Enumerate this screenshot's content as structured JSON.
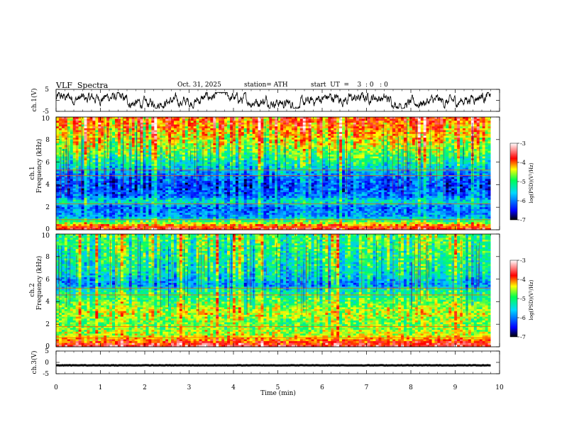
{
  "header": {
    "title": "VLF  Spectra",
    "date": "Oct. 31, 2025",
    "station": "station= ATH",
    "start_ut": "start  UT  =    3  : 0   : 0"
  },
  "colors": {
    "axis": "#000000",
    "waveform": "#000000",
    "colormap": [
      "#000000",
      "#0000ff",
      "#00c8ff",
      "#00ff64",
      "#ffff00",
      "#ff0000",
      "#ffffff"
    ]
  },
  "chart_data": [
    {
      "id": "ch1-waveform",
      "type": "line",
      "ylabel": "ch.1(V)",
      "ylim": [
        -5,
        5
      ],
      "yticks": [
        "5",
        "-5"
      ],
      "xlim": [
        0,
        10
      ],
      "description_values": "noisy trace between about -3.5 and 3.5 V"
    },
    {
      "id": "ch1-spectrogram",
      "type": "heatmap",
      "ylabel_top": "ch.1",
      "ylabel": "Frequency  (kHz)",
      "ylim": [
        0,
        10
      ],
      "yticks": [
        "0",
        "2",
        "4",
        "6",
        "8",
        "10"
      ],
      "xlim": [
        0,
        9.8
      ],
      "colorbar_label": "log(PSD)(V²/Hz)",
      "colorbar_range": [
        -7,
        -3
      ],
      "colorbar_ticks": [
        "-3",
        "-4",
        "-5",
        "-6",
        "-7"
      ],
      "profile": [
        {
          "f": 0,
          "v": -3.6
        },
        {
          "f": 0.4,
          "v": -4.2
        },
        {
          "f": 0.8,
          "v": -5.2
        },
        {
          "f": 1.2,
          "v": -5.9
        },
        {
          "f": 2,
          "v": -6.1
        },
        {
          "f": 2.5,
          "v": -5.4
        },
        {
          "f": 3,
          "v": -6.1
        },
        {
          "f": 4,
          "v": -6.3
        },
        {
          "f": 5,
          "v": -5.9
        },
        {
          "f": 5.5,
          "v": -5.6
        },
        {
          "f": 6.5,
          "v": -5.1
        },
        {
          "f": 7.5,
          "v": -4.7
        },
        {
          "f": 8.5,
          "v": -4.4
        },
        {
          "f": 9.3,
          "v": -4.2
        },
        {
          "f": 10,
          "v": -4.0
        }
      ],
      "lines_khz": [
        0.3,
        0.9,
        2.3,
        4.8,
        5.3
      ]
    },
    {
      "id": "ch2-spectrogram",
      "type": "heatmap",
      "ylabel_top": "ch.2",
      "ylabel": "Frequency  (kHz)",
      "ylim": [
        0,
        10
      ],
      "yticks": [
        "0",
        "2",
        "4",
        "6",
        "8",
        "10"
      ],
      "xlim": [
        0,
        9.8
      ],
      "colorbar_label": "log(PSD)(V²/Hz)",
      "colorbar_range": [
        -7,
        -3
      ],
      "colorbar_ticks": [
        "-3",
        "-4",
        "-5",
        "-6",
        "-7"
      ],
      "profile": [
        {
          "f": 0,
          "v": -3.5
        },
        {
          "f": 0.3,
          "v": -3.8
        },
        {
          "f": 0.6,
          "v": -4.1
        },
        {
          "f": 1,
          "v": -4.6
        },
        {
          "f": 2,
          "v": -4.9
        },
        {
          "f": 3,
          "v": -4.6
        },
        {
          "f": 3.5,
          "v": -4.8
        },
        {
          "f": 4.5,
          "v": -5.1
        },
        {
          "f": 5,
          "v": -5.3
        },
        {
          "f": 5.5,
          "v": -5.9
        },
        {
          "f": 6.5,
          "v": -5.4
        },
        {
          "f": 8,
          "v": -5.2
        },
        {
          "f": 10,
          "v": -5.0
        }
      ],
      "lines_khz": [
        0.8,
        1.8,
        4.6,
        5.2
      ]
    },
    {
      "id": "ch3-waveform",
      "type": "line",
      "ylabel": "ch.3(V)",
      "ylim": [
        -5,
        5
      ],
      "yticks": [
        "5",
        "0",
        "-5"
      ],
      "xlim": [
        0,
        10
      ],
      "level": -1.3,
      "xlabel": "Time  (min)",
      "xticks": [
        "0",
        "1",
        "2",
        "3",
        "4",
        "5",
        "6",
        "7",
        "8",
        "9",
        "10"
      ]
    }
  ]
}
